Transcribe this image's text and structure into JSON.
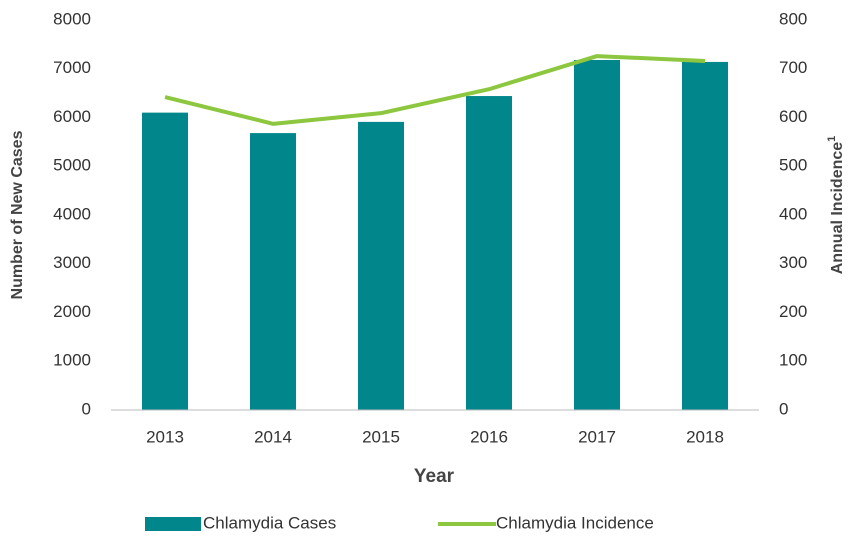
{
  "chart_data": {
    "type": "bar",
    "categories": [
      "2013",
      "2014",
      "2015",
      "2016",
      "2017",
      "2018"
    ],
    "series": [
      {
        "name": "Chlamydia Cases",
        "type": "bar",
        "color": "#00868b",
        "values": [
          6100,
          5680,
          5910,
          6440,
          7180,
          7140
        ]
      },
      {
        "name": "Chlamydia Incidence",
        "type": "line",
        "axis": "y2",
        "color": "#8dc63f",
        "values": [
          642,
          587,
          609,
          658,
          726,
          716
        ]
      }
    ],
    "xlabel": "Year",
    "ylabel": "Number of New Cases",
    "y2label": "Annual Incidence",
    "y2label_superscript": "1",
    "ylim": [
      0,
      8000
    ],
    "yticks": [
      0,
      1000,
      2000,
      3000,
      4000,
      5000,
      6000,
      7000,
      8000
    ],
    "y2lim": [
      0,
      800
    ],
    "y2ticks": [
      0,
      100,
      200,
      300,
      400,
      500,
      600,
      700,
      800
    ],
    "grid": false,
    "legend": "bottom"
  }
}
